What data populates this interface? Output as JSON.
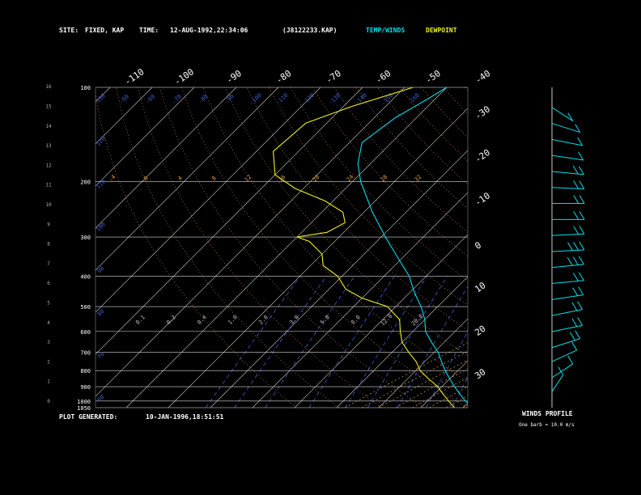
{
  "header": {
    "site_label": "SITE:",
    "site_value": "FIXED, KAP",
    "time_label": "TIME:",
    "time_value": "12-AUG-1992,22:34:06",
    "file_id": "(J8122233.KAP)",
    "temp_winds_label": "TEMP/WINDS",
    "dewpoint_label": "DEWPOINT"
  },
  "footer": {
    "plot_generated_label": "PLOT GENERATED:",
    "plot_generated_value": "10-JAN-1996,18:51:51",
    "winds_profile_label": "WINDS PROFILE",
    "barb_note": "One barb = 10.0 m/s"
  },
  "colors": {
    "background": "#000000",
    "temperature": "#00e0e8",
    "dewpoint": "#f0f020",
    "isotherm": "#d8d8d8",
    "isobar": "#d8d8d8",
    "dry_adiabat": "#e08060",
    "moist_adiabat": "#e0a040",
    "mixing_ratio": "#4060d0",
    "wind": "#00e0e8"
  },
  "chart_data": {
    "type": "skew-t",
    "pressure_levels": [
      100,
      200,
      300,
      400,
      500,
      600,
      700,
      800,
      900,
      1000,
      1050
    ],
    "pressure_tick_labels": [
      "100",
      "200",
      "300",
      "400",
      "500",
      "600",
      "700",
      "800",
      "900",
      "1000",
      "1050"
    ],
    "height_ticks": [
      "0",
      "1",
      "2",
      "3",
      "4",
      "5",
      "6",
      "7",
      "8",
      "9",
      "10",
      "11",
      "12",
      "13",
      "14",
      "15",
      "16"
    ],
    "top_temp_labels": [
      "-110",
      "-100",
      "-90",
      "-80",
      "-70",
      "-60",
      "-50",
      "-40"
    ],
    "right_temp_labels": [
      "-30",
      "-20",
      "-10",
      "0",
      "10",
      "20",
      "30"
    ],
    "dry_adiabat_labels": [
      "-50",
      "-50",
      "-60",
      "-60",
      "-70",
      "-80",
      "-90",
      "-100",
      "-110",
      "-120",
      "-130",
      "-140",
      "-150",
      "-160"
    ],
    "moist_adiabat_labels": [
      "-4",
      "0",
      "4",
      "8",
      "12",
      "16",
      "20",
      "24",
      "28",
      "32"
    ],
    "mixing_ratio_labels": [
      "0.1",
      "0.2",
      "0.4",
      "1.0",
      "2.0",
      "3.0",
      "5.0",
      "8.0",
      "12.0",
      "20.0"
    ],
    "left_theta_labels": [
      "60",
      "70",
      "80",
      "90",
      "100",
      "110",
      "120",
      "130"
    ],
    "temperature_profile": [
      {
        "p": 1050,
        "t": 23
      },
      {
        "p": 1000,
        "t": 19
      },
      {
        "p": 950,
        "t": 16
      },
      {
        "p": 900,
        "t": 13
      },
      {
        "p": 850,
        "t": 10
      },
      {
        "p": 800,
        "t": 7
      },
      {
        "p": 750,
        "t": 4
      },
      {
        "p": 700,
        "t": 1
      },
      {
        "p": 650,
        "t": -3
      },
      {
        "p": 600,
        "t": -7
      },
      {
        "p": 550,
        "t": -10
      },
      {
        "p": 500,
        "t": -14
      },
      {
        "p": 450,
        "t": -19
      },
      {
        "p": 400,
        "t": -24
      },
      {
        "p": 350,
        "t": -31
      },
      {
        "p": 300,
        "t": -39
      },
      {
        "p": 250,
        "t": -48
      },
      {
        "p": 200,
        "t": -58
      },
      {
        "p": 175,
        "t": -63
      },
      {
        "p": 150,
        "t": -67
      },
      {
        "p": 125,
        "t": -65
      },
      {
        "p": 110,
        "t": -62
      },
      {
        "p": 100,
        "t": -60
      }
    ],
    "dewpoint_profile": [
      {
        "p": 1050,
        "t": 18
      },
      {
        "p": 1000,
        "t": 15
      },
      {
        "p": 950,
        "t": 12
      },
      {
        "p": 900,
        "t": 9
      },
      {
        "p": 850,
        "t": 5
      },
      {
        "p": 800,
        "t": 1
      },
      {
        "p": 750,
        "t": -2
      },
      {
        "p": 700,
        "t": -6
      },
      {
        "p": 650,
        "t": -10
      },
      {
        "p": 600,
        "t": -13
      },
      {
        "p": 550,
        "t": -16
      },
      {
        "p": 500,
        "t": -22
      },
      {
        "p": 470,
        "t": -30
      },
      {
        "p": 440,
        "t": -36
      },
      {
        "p": 400,
        "t": -41
      },
      {
        "p": 370,
        "t": -47
      },
      {
        "p": 340,
        "t": -50
      },
      {
        "p": 310,
        "t": -56
      },
      {
        "p": 300,
        "t": -60
      },
      {
        "p": 290,
        "t": -54
      },
      {
        "p": 270,
        "t": -52
      },
      {
        "p": 250,
        "t": -55
      },
      {
        "p": 230,
        "t": -62
      },
      {
        "p": 210,
        "t": -72
      },
      {
        "p": 190,
        "t": -80
      },
      {
        "p": 160,
        "t": -86
      },
      {
        "p": 130,
        "t": -85
      },
      {
        "p": 115,
        "t": -78
      },
      {
        "p": 100,
        "t": -68
      }
    ],
    "wind_profile": [
      {
        "h": 0.8,
        "dir": 200,
        "spd": 5
      },
      {
        "h": 1.5,
        "dir": 220,
        "spd": 8
      },
      {
        "h": 2.3,
        "dir": 230,
        "spd": 12
      },
      {
        "h": 3.0,
        "dir": 240,
        "spd": 15
      },
      {
        "h": 3.8,
        "dir": 250,
        "spd": 18
      },
      {
        "h": 4.6,
        "dir": 250,
        "spd": 20
      },
      {
        "h": 5.4,
        "dir": 255,
        "spd": 22
      },
      {
        "h": 6.2,
        "dir": 260,
        "spd": 24
      },
      {
        "h": 7.0,
        "dir": 260,
        "spd": 26
      },
      {
        "h": 7.8,
        "dir": 265,
        "spd": 25
      },
      {
        "h": 8.6,
        "dir": 265,
        "spd": 24
      },
      {
        "h": 9.4,
        "dir": 270,
        "spd": 22
      },
      {
        "h": 10.2,
        "dir": 270,
        "spd": 22
      },
      {
        "h": 11.0,
        "dir": 275,
        "spd": 20
      },
      {
        "h": 11.8,
        "dir": 280,
        "spd": 15
      },
      {
        "h": 12.6,
        "dir": 285,
        "spd": 12
      },
      {
        "h": 13.4,
        "dir": 290,
        "spd": 8
      },
      {
        "h": 14.2,
        "dir": 300,
        "spd": 6
      },
      {
        "h": 15.0,
        "dir": 320,
        "spd": 10
      }
    ]
  }
}
